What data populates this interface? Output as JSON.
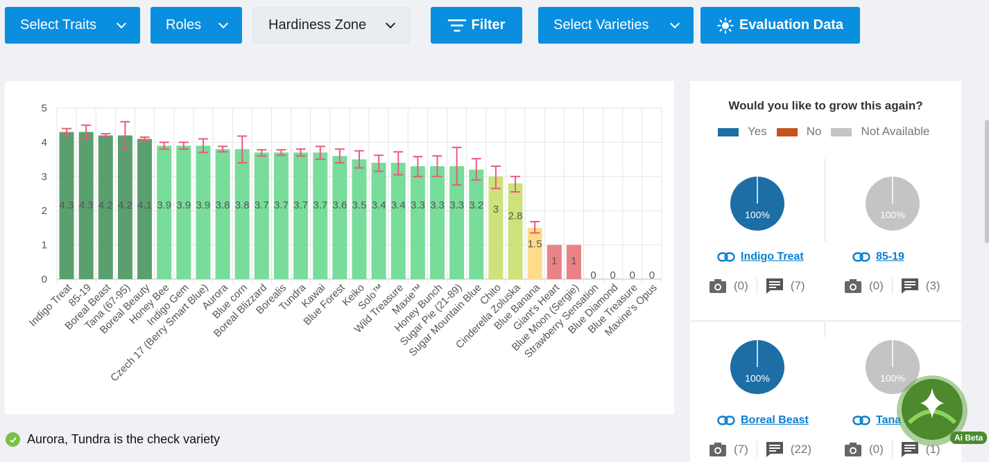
{
  "toolbar": {
    "select_traits": "Select Traits",
    "roles": "Roles",
    "hardiness_zone": "Hardiness Zone",
    "filter": "Filter",
    "select_varieties": "Select Varieties",
    "evaluation_data": "Evaluation Data",
    "colors": {
      "primary": "#0a8ee0",
      "neutral": "#e9edf1"
    }
  },
  "chart_data": {
    "type": "bar",
    "ylim": [
      0,
      5
    ],
    "yticks": [
      "0",
      "1",
      "2",
      "3",
      "4",
      "5"
    ],
    "categories": [
      "Indigo Treat",
      "85-19",
      "Boreal Beast",
      "Tana (67-95)",
      "Boreal Beauty",
      "Honey Bee",
      "Indigo Gem",
      "Czech 17 (Berry Smart Blue)",
      "Aurora",
      "Blue corn",
      "Boreal Blizzard",
      "Borealis",
      "Tundra",
      "Kawai",
      "Blue Forest",
      "Keiko",
      "Solo™",
      "Wild Treasure",
      "Maxie™",
      "Honey Bunch",
      "Sugar Pie (21-89)",
      "Sugar Mountain Blue",
      "Chito",
      "Cinderella Zoluska",
      "Blue Banana",
      "Giant's Heart",
      "Blue Moon (Sergie)",
      "Strawberry Sensation",
      "Blue Diamond",
      "Blue Treasure",
      "Maxine's Opus"
    ],
    "values": [
      4.3,
      4.3,
      4.2,
      4.2,
      4.1,
      3.9,
      3.9,
      3.9,
      3.8,
      3.8,
      3.7,
      3.7,
      3.7,
      3.7,
      3.6,
      3.5,
      3.4,
      3.4,
      3.3,
      3.3,
      3.3,
      3.2,
      3,
      2.8,
      1.5,
      1,
      1,
      0,
      0,
      0,
      0
    ],
    "value_labels": [
      "4.3",
      "4.3",
      "4.2",
      "4.2",
      "4.1",
      "3.9",
      "3.9",
      "3.9",
      "3.8",
      "3.8",
      "3.7",
      "3.7",
      "3.7",
      "3.7",
      "3.6",
      "3.5",
      "3.4",
      "3.4",
      "3.3",
      "3.3",
      "3.3",
      "3.2",
      "3",
      "2.8",
      "1.5",
      "1",
      "1",
      "0",
      "0",
      "0",
      "0"
    ],
    "error_low": [
      4.2,
      4.1,
      4.15,
      3.8,
      4.05,
      3.8,
      3.8,
      3.7,
      3.72,
      3.4,
      3.6,
      3.62,
      3.6,
      3.5,
      3.4,
      3.25,
      3.15,
      3.05,
      3.0,
      3.0,
      2.75,
      2.9,
      2.65,
      2.55,
      1.35,
      null,
      null,
      null,
      null,
      null,
      null
    ],
    "error_high": [
      4.4,
      4.5,
      4.25,
      4.6,
      4.15,
      4.0,
      4.0,
      4.1,
      3.88,
      4.18,
      3.78,
      3.78,
      3.8,
      3.88,
      3.8,
      3.75,
      3.62,
      3.72,
      3.58,
      3.6,
      3.85,
      3.52,
      3.3,
      3.0,
      1.68,
      null,
      null,
      null,
      null,
      null,
      null
    ],
    "bar_colors": {
      "high": "#5aa06f",
      "good": "#78dc9a",
      "mid": "#cde27a",
      "low": "#ffdb8a",
      "poor": "#e98286",
      "error": "#ea5a7a"
    },
    "grid": true
  },
  "pie_panel": {
    "title": "Would you like to grow this again?",
    "legend": [
      {
        "label": "Yes",
        "color": "#1c6ea4"
      },
      {
        "label": "No",
        "color": "#c4531f"
      },
      {
        "label": "Not Available",
        "color": "#c4c4c4"
      }
    ],
    "items": [
      {
        "name": "Indigo Treat",
        "pct": "100%",
        "pie_color": "#1c6ea4",
        "photos": "(0)",
        "comments": "(7)"
      },
      {
        "name": "85-19",
        "pct": "100%",
        "pie_color": "#c4c4c4",
        "photos": "(0)",
        "comments": "(3)"
      },
      {
        "name": "Boreal Beast",
        "pct": "100%",
        "pie_color": "#1c6ea4",
        "photos": "(7)",
        "comments": "(22)"
      },
      {
        "name": "Tana",
        "pct": "100%",
        "pie_color": "#c4c4c4",
        "photos": "(0)",
        "comments": "(1)"
      }
    ]
  },
  "check_note": "Aurora, Tundra is the check variety",
  "ai_badge": {
    "label": "Ai Beta",
    "icon": "sparkle-icon",
    "color": "#4c8a2d"
  }
}
